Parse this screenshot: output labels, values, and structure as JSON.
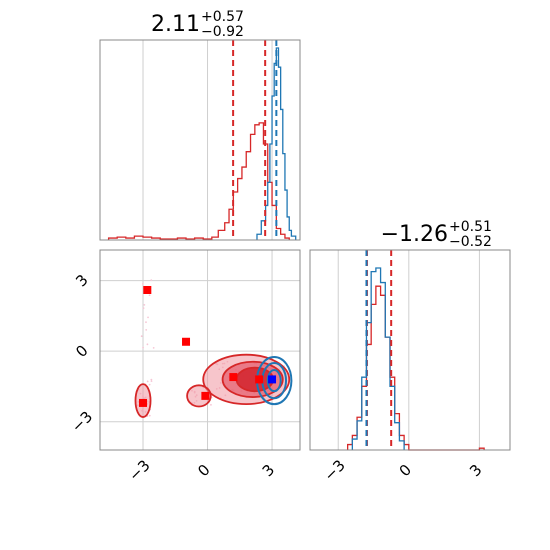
{
  "chart_data": [
    {
      "panel": "marginal-param-1",
      "type": "histogram",
      "title": {
        "main": "2.11",
        "sup": "+0.57",
        "sub": "−0.92"
      },
      "xlim": [
        -5,
        4.3
      ],
      "grid": true,
      "quantile_lines": {
        "red": [
          1.19,
          2.68
        ],
        "blue": [
          3.2
        ]
      },
      "series": [
        {
          "color": "#d62728",
          "bins": [
            -4.6,
            -4.2,
            -3.8,
            -3.4,
            -3.0,
            -2.6,
            -2.2,
            -1.8,
            -1.4,
            -1.0,
            -0.6,
            -0.2,
            0.2,
            0.5,
            0.8,
            1.0,
            1.2,
            1.4,
            1.6,
            1.8,
            2.0,
            2.2,
            2.4,
            2.6,
            2.8,
            3.0,
            3.2,
            3.4,
            3.6,
            3.8
          ],
          "counts": [
            0.01,
            0.015,
            0.01,
            0.02,
            0.015,
            0.01,
            0.005,
            0.005,
            0.01,
            0.005,
            0.01,
            0.005,
            0.015,
            0.05,
            0.09,
            0.16,
            0.25,
            0.32,
            0.38,
            0.46,
            0.55,
            0.6,
            0.61,
            0.5,
            0.3,
            0.18,
            0.06,
            0.03,
            0.01
          ]
        },
        {
          "color": "#1f77b4",
          "bins": [
            2.3,
            2.5,
            2.7,
            2.8,
            2.9,
            3.0,
            3.1,
            3.2,
            3.3,
            3.4,
            3.5,
            3.6,
            3.7,
            3.8,
            3.9,
            4.1
          ],
          "counts": [
            0.03,
            0.1,
            0.18,
            0.3,
            0.5,
            0.75,
            0.92,
            1.0,
            0.9,
            0.68,
            0.45,
            0.26,
            0.12,
            0.05,
            0.02
          ]
        }
      ]
    },
    {
      "panel": "marginal-param-2",
      "type": "histogram",
      "title": {
        "main": "−1.26",
        "sup": "+0.51",
        "sub": "−0.52"
      },
      "xlim": [
        -4.2,
        4.3
      ],
      "grid": true,
      "xticks": [
        "−3",
        "0",
        "3"
      ],
      "quantile_lines": {
        "red": [
          -1.78,
          -0.75
        ],
        "blue": [
          -1.8
        ]
      },
      "series": [
        {
          "color": "#d62728",
          "bins": [
            -2.6,
            -2.4,
            -2.2,
            -2.0,
            -1.8,
            -1.6,
            -1.4,
            -1.2,
            -1.0,
            -0.8,
            -0.6,
            -0.4,
            -0.2,
            0.0,
            3.0,
            3.2
          ],
          "counts": [
            0.03,
            0.08,
            0.18,
            0.35,
            0.58,
            0.8,
            0.9,
            0.85,
            0.62,
            0.4,
            0.2,
            0.08,
            0.03,
            0.0,
            0.01
          ]
        },
        {
          "color": "#1f77b4",
          "bins": [
            -2.4,
            -2.2,
            -2.0,
            -1.8,
            -1.6,
            -1.4,
            -1.2,
            -1.0,
            -0.8,
            -0.6,
            -0.4,
            -0.2
          ],
          "counts": [
            0.06,
            0.16,
            0.4,
            0.7,
            0.98,
            1.0,
            0.92,
            0.62,
            0.35,
            0.15,
            0.05
          ]
        }
      ]
    },
    {
      "panel": "joint-param-1-param-2",
      "type": "scatter",
      "xlim": [
        -5,
        4.3
      ],
      "ylim": [
        -4.2,
        4.3
      ],
      "grid": true,
      "xticks": [
        "−3",
        "0",
        "3"
      ],
      "yticks": [
        "3",
        "0",
        "−3"
      ],
      "red_markers": [
        [
          -2.8,
          2.6
        ],
        [
          -1.0,
          0.4
        ],
        [
          -0.1,
          -1.9
        ],
        [
          -3.0,
          -2.2
        ],
        [
          1.2,
          -1.1
        ],
        [
          2.4,
          -1.2
        ]
      ],
      "blue_markers": [
        [
          3.0,
          -1.2
        ]
      ],
      "red_contours": [
        {
          "level": 1,
          "center": [
            1.8,
            -1.2
          ],
          "rx": 2.0,
          "ry": 1.05
        },
        {
          "level": 2,
          "center": [
            2.1,
            -1.2
          ],
          "rx": 1.4,
          "ry": 0.75
        },
        {
          "level": 3,
          "center": [
            2.2,
            -1.2
          ],
          "rx": 0.85,
          "ry": 0.5
        },
        {
          "level": 1,
          "center": [
            -0.4,
            -1.9
          ],
          "rx": 0.55,
          "ry": 0.45
        },
        {
          "level": 1,
          "center": [
            -3.0,
            -2.1
          ],
          "rx": 0.35,
          "ry": 0.7
        }
      ],
      "blue_contours": [
        {
          "level": 1,
          "center": [
            3.1,
            -1.25
          ],
          "rx": 0.8,
          "ry": 1.0
        },
        {
          "level": 2,
          "center": [
            3.1,
            -1.25
          ],
          "rx": 0.55,
          "ry": 0.75
        },
        {
          "level": 3,
          "center": [
            3.1,
            -1.25
          ],
          "rx": 0.3,
          "ry": 0.45
        }
      ]
    }
  ]
}
